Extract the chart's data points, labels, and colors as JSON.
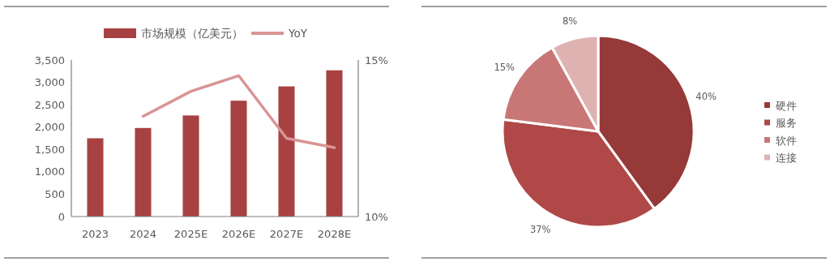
{
  "chart_data": [
    {
      "type": "bar",
      "categories": [
        "2023",
        "2024",
        "2025E",
        "2026E",
        "2027E",
        "2028E"
      ],
      "series": [
        {
          "name": "市场规模（亿美元）",
          "type": "bar",
          "color": "#a84242",
          "values": [
            1750,
            1980,
            2260,
            2590,
            2910,
            3270
          ]
        },
        {
          "name": "YoY",
          "type": "line",
          "axis": "y2",
          "color": "#d99494",
          "values": [
            null,
            13.2,
            14.0,
            14.5,
            12.5,
            12.2
          ]
        }
      ],
      "ylim": [
        0,
        3500
      ],
      "yticks": [
        {
          "value": 0,
          "label": "0"
        },
        {
          "value": 500,
          "label": "500"
        },
        {
          "value": 1000,
          "label": "1,000"
        },
        {
          "value": 1500,
          "label": "1,500"
        },
        {
          "value": 2000,
          "label": "2,000"
        },
        {
          "value": 2500,
          "label": "2,500"
        },
        {
          "value": 3000,
          "label": "3,000"
        },
        {
          "value": 3500,
          "label": "3,500"
        }
      ],
      "y2lim": [
        10,
        15
      ],
      "y2ticks": [
        {
          "value": 10,
          "label": "10%"
        },
        {
          "value": 15,
          "label": "15%"
        }
      ],
      "legend": "top",
      "grid": false,
      "marker": "none"
    },
    {
      "type": "pie",
      "categories": [
        "硬件",
        "服务",
        "软件",
        "连接"
      ],
      "values": [
        40,
        37,
        15,
        8
      ],
      "colors": [
        "#953939",
        "#b04848",
        "#c97676",
        "#dfb2b2"
      ],
      "value_labels": [
        "40%",
        "37%",
        "15%",
        "8%"
      ],
      "legend": "right"
    }
  ]
}
